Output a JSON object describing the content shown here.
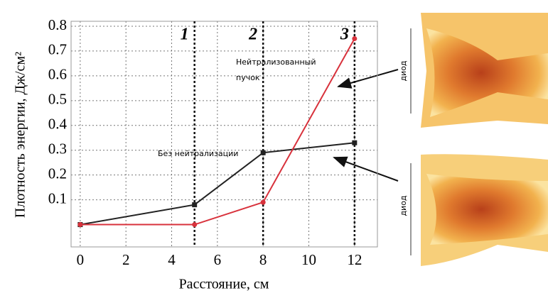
{
  "chart_data": {
    "type": "line",
    "y_label": "Плотность энергии, Дж/см²",
    "x_label": "Расстояние, см",
    "xlim": [
      -0.4,
      13
    ],
    "ylim": [
      -0.09,
      0.82
    ],
    "xticks": [
      0,
      2,
      4,
      6,
      8,
      10,
      12
    ],
    "yticks": [
      0.1,
      0.2,
      0.3,
      0.4,
      0.5,
      0.6,
      0.7,
      0.8
    ],
    "grid": true,
    "x": [
      0,
      5,
      8,
      12
    ],
    "series": [
      {
        "name": "Без нейтрализации",
        "color": "#222222",
        "values": [
          0,
          0.08,
          0.29,
          0.33
        ]
      },
      {
        "name": "Нейтрализованный пучок",
        "color": "#d8323c",
        "values": [
          0,
          0,
          0.09,
          0.75
        ]
      }
    ],
    "markers": [
      {
        "x": 5,
        "label": "1"
      },
      {
        "x": 8,
        "label": "2"
      },
      {
        "x": 12,
        "label": "3"
      }
    ]
  },
  "images": [
    {
      "label": "диод"
    },
    {
      "label": "диод"
    }
  ]
}
